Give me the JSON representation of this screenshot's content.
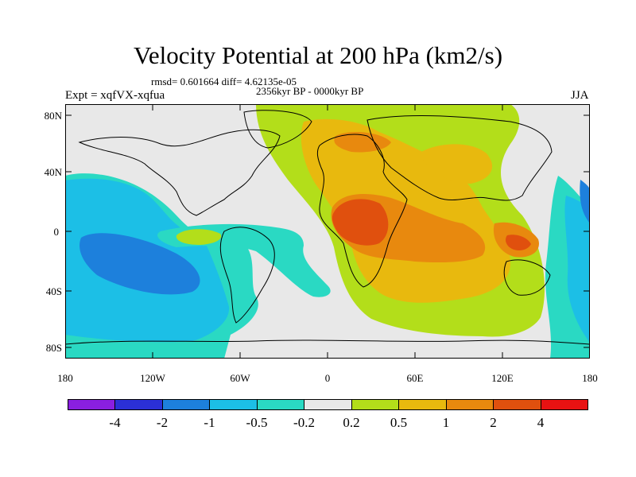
{
  "title": "Velocity Potential at 200 hPa (km2/s)",
  "stats": "rmsd= 0.601664 diff= 4.62135e-05",
  "period": "2356kyr BP - 0000kyr BP",
  "experiment": "Expt = xqfVX-xqfua",
  "season": "JJA",
  "lat_labels": [
    "80N",
    "40N",
    "0",
    "40S",
    "80S"
  ],
  "lon_labels": [
    "180",
    "120W",
    "60W",
    "0",
    "60E",
    "120E",
    "180"
  ],
  "colorbar": {
    "labels": [
      "-4",
      "-2",
      "-1",
      "-0.5",
      "-0.2",
      "0.2",
      "0.5",
      "1",
      "2",
      "4"
    ],
    "colors": [
      "#8a1fe0",
      "#2b30d6",
      "#1d80dc",
      "#1cbfe6",
      "#2ad9c3",
      "#e8e8e8",
      "#b3de1a",
      "#e8b90e",
      "#e8890e",
      "#e0500e",
      "#e81212"
    ]
  },
  "palette": {
    "neutral": "#e8e8e8",
    "pos_weak": "#b3de1a",
    "pos_mid": "#e8b90e",
    "pos_strong": "#e8890e",
    "pos_max": "#e0500e",
    "neg_weak": "#2ad9c3",
    "neg_mid": "#1cbfe6",
    "neg_strong": "#1d80dc"
  }
}
